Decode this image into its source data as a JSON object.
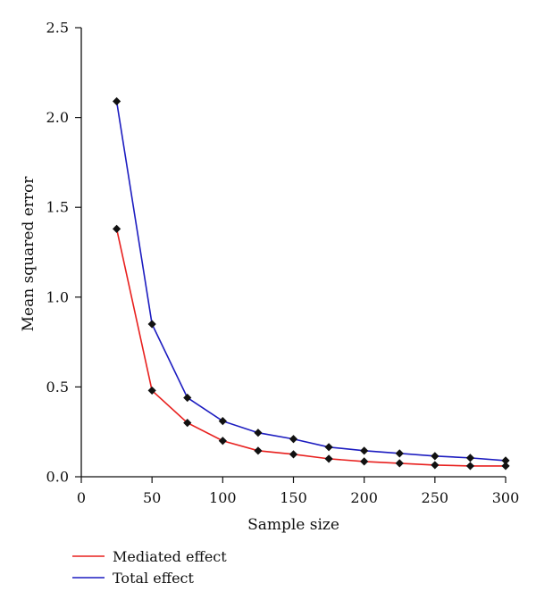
{
  "chart_data": {
    "type": "line",
    "title": "",
    "xlabel": "Sample size",
    "ylabel": "Mean squared error",
    "xlim": [
      0,
      300
    ],
    "ylim": [
      0.0,
      2.5
    ],
    "x_ticks": [
      "0",
      "50",
      "100",
      "150",
      "200",
      "250",
      "300"
    ],
    "y_ticks": [
      "0.0",
      "0.5",
      "1.0",
      "1.5",
      "2.0",
      "2.5"
    ],
    "grid": false,
    "legend_position": "bottom-left",
    "x": [
      25,
      50,
      75,
      100,
      125,
      150,
      175,
      200,
      225,
      250,
      275,
      300
    ],
    "series": [
      {
        "name": "Mediated effect",
        "color": "#e8201e",
        "values": [
          1.38,
          0.48,
          0.3,
          0.2,
          0.145,
          0.125,
          0.1,
          0.085,
          0.075,
          0.065,
          0.06,
          0.06
        ]
      },
      {
        "name": "Total effect",
        "color": "#1c1cc0",
        "values": [
          2.09,
          0.85,
          0.44,
          0.31,
          0.245,
          0.21,
          0.165,
          0.145,
          0.13,
          0.115,
          0.105,
          0.09
        ]
      }
    ],
    "marker_color": "#111111"
  }
}
